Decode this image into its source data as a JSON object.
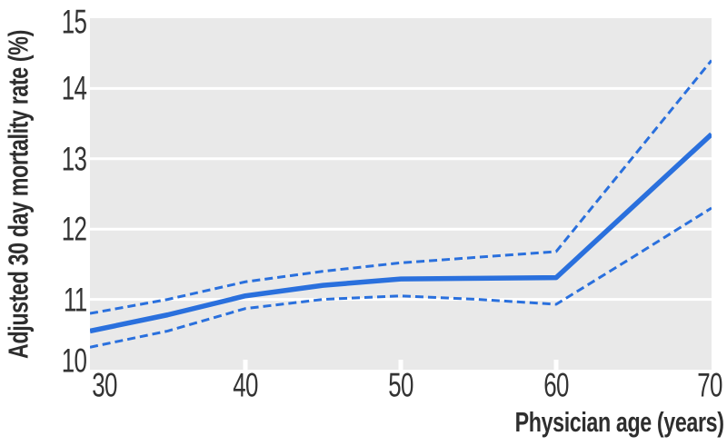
{
  "chart_data": {
    "type": "line",
    "title": "",
    "xlabel": "Physician age (years)",
    "ylabel": "Adjusted 30 day mortality rate (%)",
    "xlim": [
      30,
      70
    ],
    "ylim": [
      10,
      15
    ],
    "x_ticks": [
      "30",
      "40",
      "50",
      "60",
      "70"
    ],
    "x_tick_values": [
      30,
      40,
      50,
      60,
      70
    ],
    "y_ticks": [
      "10",
      "11",
      "12",
      "13",
      "14",
      "15"
    ],
    "y_tick_values": [
      10,
      11,
      12,
      13,
      14,
      15
    ],
    "grid": "horizontal white gridlines on gray panel",
    "legend_position": "none",
    "x": [
      30,
      35,
      40,
      45,
      50,
      55,
      60,
      65,
      70
    ],
    "series": [
      {
        "name": "solid-line",
        "style": "solid",
        "stroke_width": 5.5,
        "values": [
          10.55,
          10.78,
          11.05,
          11.2,
          11.29,
          11.3,
          11.31,
          12.33,
          13.35
        ]
      },
      {
        "name": "upper-dashed-line",
        "style": "dashed",
        "stroke_width": 3,
        "values": [
          10.8,
          11.0,
          11.25,
          11.4,
          11.52,
          11.6,
          11.68,
          13.04,
          14.4
        ]
      },
      {
        "name": "lower-dashed-line",
        "style": "dashed",
        "stroke_width": 3,
        "values": [
          10.32,
          10.55,
          10.87,
          11.0,
          11.05,
          11.0,
          10.93,
          11.61,
          12.3
        ]
      }
    ],
    "colors": {
      "line": "#2a70dd",
      "plot_background": "#e9e9e9",
      "gridline": "#ffffff",
      "text": "#333333",
      "page_background": "#ffffff"
    }
  }
}
